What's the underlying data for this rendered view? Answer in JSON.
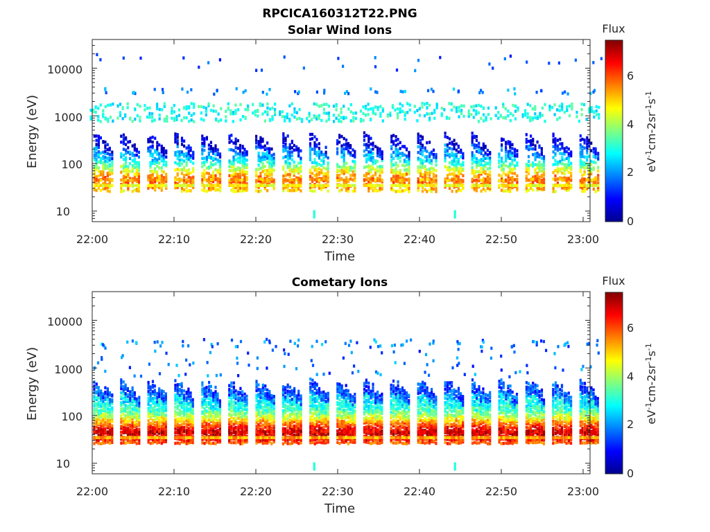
{
  "figure_title": "RPCICA160312T22.PNG",
  "colormap": [
    "#00008f",
    "#0000ff",
    "#0080ff",
    "#00ffff",
    "#80ff80",
    "#ffff00",
    "#ff8000",
    "#ff0000",
    "#800000"
  ],
  "chart_data": [
    {
      "type": "heatmap",
      "title": "Solar Wind Ions",
      "xlabel": "Time",
      "ylabel": "Energy (eV)",
      "x_ticks": [
        "22:00",
        "22:10",
        "22:20",
        "22:30",
        "22:40",
        "22:50",
        "23:00"
      ],
      "x_range": [
        "22:00",
        "23:00"
      ],
      "y_scale": "log",
      "y_ticks": [
        "10",
        "100",
        "1000",
        "10000"
      ],
      "y_range": [
        6,
        40000
      ],
      "colorbar": {
        "title": "Flux",
        "label": "eV-1cm-2sr-1s-1",
        "ticks": [
          "0",
          "2",
          "4",
          "6"
        ],
        "range": [
          0,
          7.3
        ]
      },
      "scans": {
        "count": 19,
        "period_min": 3.3,
        "core_energy_eV": 40,
        "peak_flux": 6.5,
        "upper_band_eV": [
          700,
          1700
        ],
        "upper_band_flux": 2.8,
        "sparse_band_eV": 3000
      }
    },
    {
      "type": "heatmap",
      "title": "Cometary Ions",
      "xlabel": "Time",
      "ylabel": "Energy (eV)",
      "x_ticks": [
        "22:00",
        "22:10",
        "22:20",
        "22:30",
        "22:40",
        "22:50",
        "23:00"
      ],
      "x_range": [
        "22:00",
        "23:00"
      ],
      "y_scale": "log",
      "y_ticks": [
        "10",
        "100",
        "1000",
        "10000"
      ],
      "y_range": [
        6,
        40000
      ],
      "colorbar": {
        "title": "Flux",
        "label": "eV-1cm-2sr-1s-1",
        "ticks": [
          "0",
          "2",
          "4",
          "6"
        ],
        "range": [
          0,
          7.3
        ]
      },
      "scans": {
        "count": 19,
        "period_min": 3.3,
        "core_energy_eV": 40,
        "peak_flux": 7.2,
        "max_energy_eV": 500,
        "sparse_band_eV": 3000
      }
    }
  ]
}
